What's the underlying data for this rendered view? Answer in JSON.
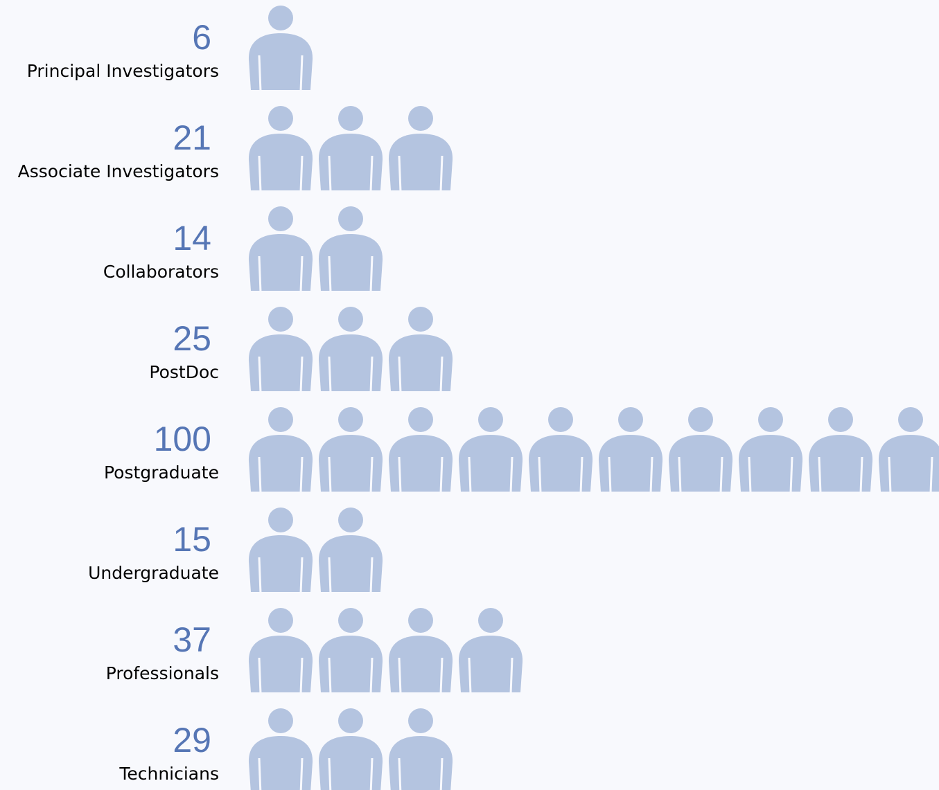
{
  "chart_data": {
    "type": "pictogram",
    "categories": [
      "Principal Investigators",
      "Associate Investigators",
      "Collaborators",
      "PostDoc",
      "Postgraduate",
      "Undergraduate",
      "Professionals",
      "Technicians"
    ],
    "values": [
      6,
      21,
      14,
      25,
      100,
      15,
      37,
      29
    ],
    "icon_value": 10,
    "color": "#5676b5",
    "empty_color": "#b4c4e0"
  }
}
